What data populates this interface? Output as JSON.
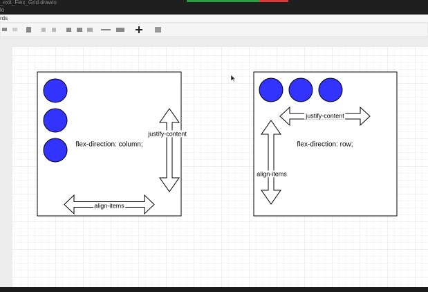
{
  "window": {
    "title": "_exit_Flex_Grid.drawio",
    "menu": "lo",
    "tab": "rds"
  },
  "diagram": {
    "left": {
      "direction": "flex-direction: column;",
      "main_axis": "justify-content",
      "cross_axis": "align-items"
    },
    "right": {
      "direction": "flex-direction: row;",
      "main_axis": "justify-content",
      "cross_axis": "align-items"
    }
  }
}
